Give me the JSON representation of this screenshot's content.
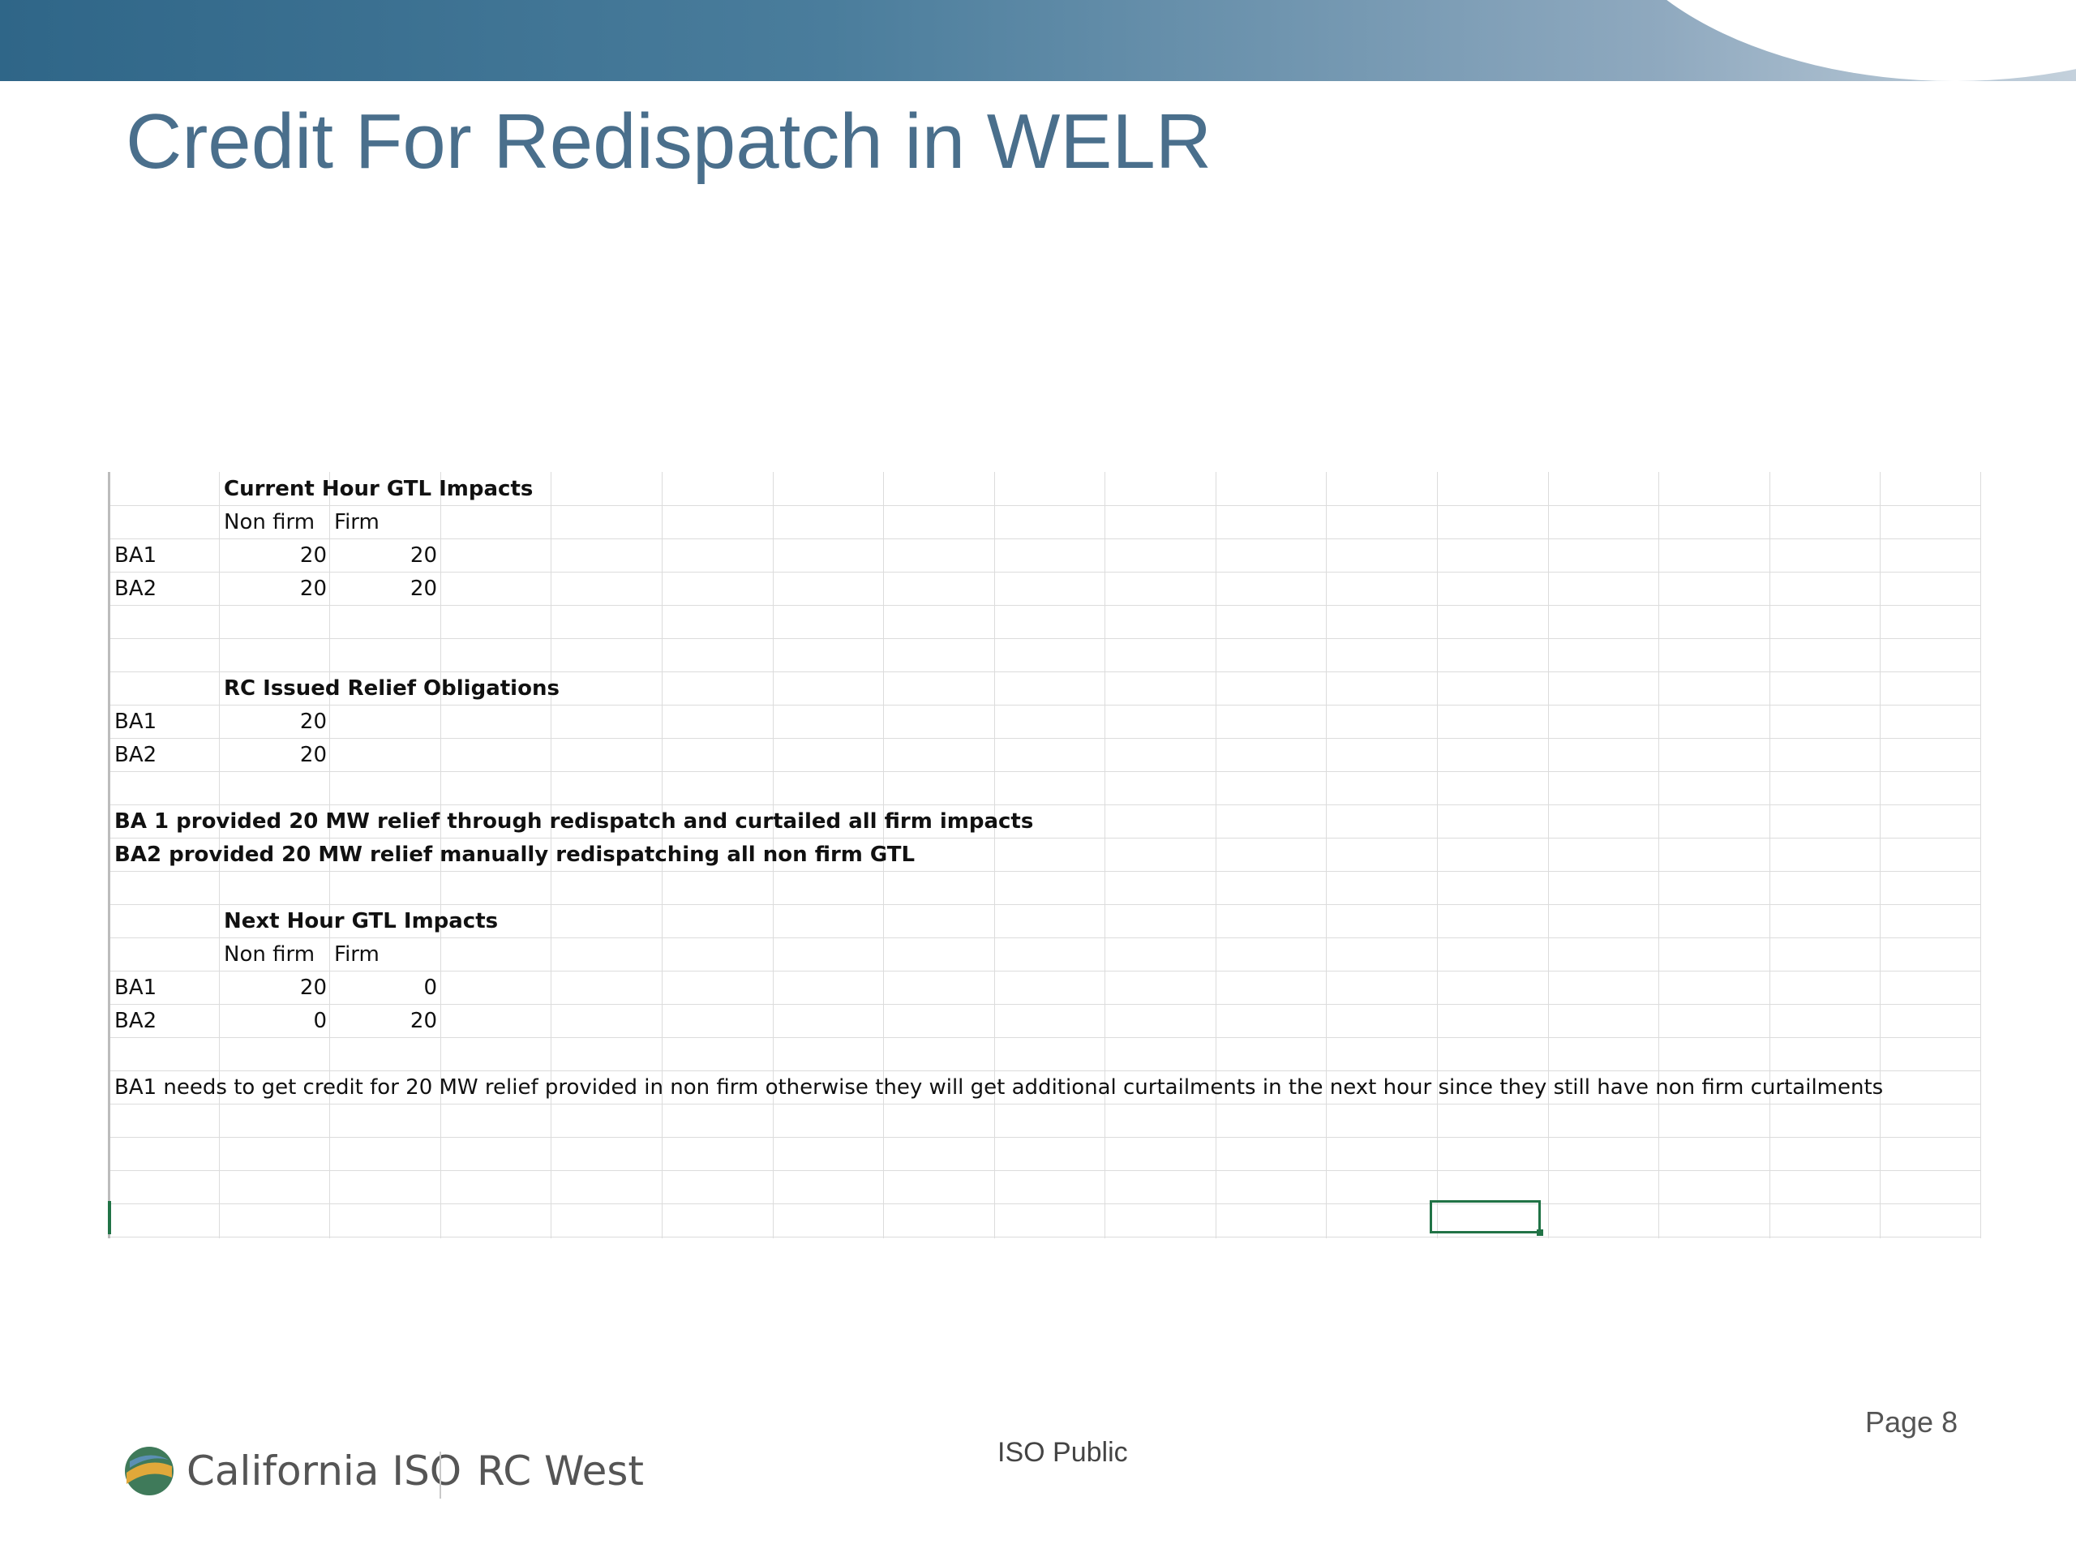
{
  "slide": {
    "title": "Credit For Redispatch in WELR",
    "footer_public": "ISO Public",
    "page_label": "Page 8",
    "brand_primary": "California ISO",
    "brand_secondary": "RC West",
    "accent_color": "#4a6f8c",
    "banner_color": "#2f6688"
  },
  "sheet": {
    "current_hour": {
      "header": "Current Hour GTL Impacts",
      "col_nonfirm": "Non firm",
      "col_firm": "Firm",
      "rows": [
        {
          "label": "BA1",
          "nonfirm": "20",
          "firm": "20"
        },
        {
          "label": "BA2",
          "nonfirm": "20",
          "firm": "20"
        }
      ]
    },
    "relief": {
      "header": "RC Issued Relief Obligations",
      "rows": [
        {
          "label": "BA1",
          "value": "20"
        },
        {
          "label": "BA2",
          "value": "20"
        }
      ]
    },
    "notes": [
      "BA 1 provided 20 MW relief through redispatch and curtailed all firm impacts",
      "BA2 provided 20 MW relief manually redispatching all non firm GTL"
    ],
    "next_hour": {
      "header": "Next Hour GTL Impacts",
      "col_nonfirm": "Non firm",
      "col_firm": "Firm",
      "rows": [
        {
          "label": "BA1",
          "nonfirm": "20",
          "firm": "0"
        },
        {
          "label": "BA2",
          "nonfirm": "0",
          "firm": "20"
        }
      ]
    },
    "conclusion": "BA1 needs to get credit for 20 MW relief provided in non firm otherwise they will get additional curtailments in the next hour since they still have non firm curtailments"
  }
}
